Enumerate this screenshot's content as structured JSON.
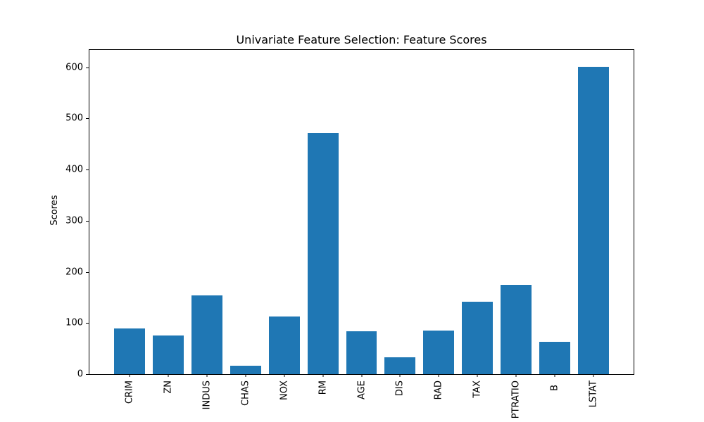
{
  "chart_data": {
    "type": "bar",
    "title": "Univariate Feature Selection: Feature Scores",
    "xlabel": "",
    "ylabel": "Scores",
    "categories": [
      "CRIM",
      "ZN",
      "INDUS",
      "CHAS",
      "NOX",
      "RM",
      "AGE",
      "DIS",
      "RAD",
      "TAX",
      "PTRATIO",
      "B",
      "LSTAT"
    ],
    "values": [
      89.5,
      75.3,
      154.0,
      16.0,
      112.6,
      471.8,
      83.5,
      33.6,
      85.9,
      141.8,
      175.1,
      63.1,
      601.6
    ],
    "yticks": [
      0,
      100,
      200,
      300,
      400,
      500,
      600
    ],
    "ylim": [
      0,
      634
    ],
    "xtick_rotation": 90,
    "bar_color": "#1f77b4",
    "axes_color": "#000000",
    "background_color": "#ffffff",
    "grid": false,
    "legend": null
  }
}
